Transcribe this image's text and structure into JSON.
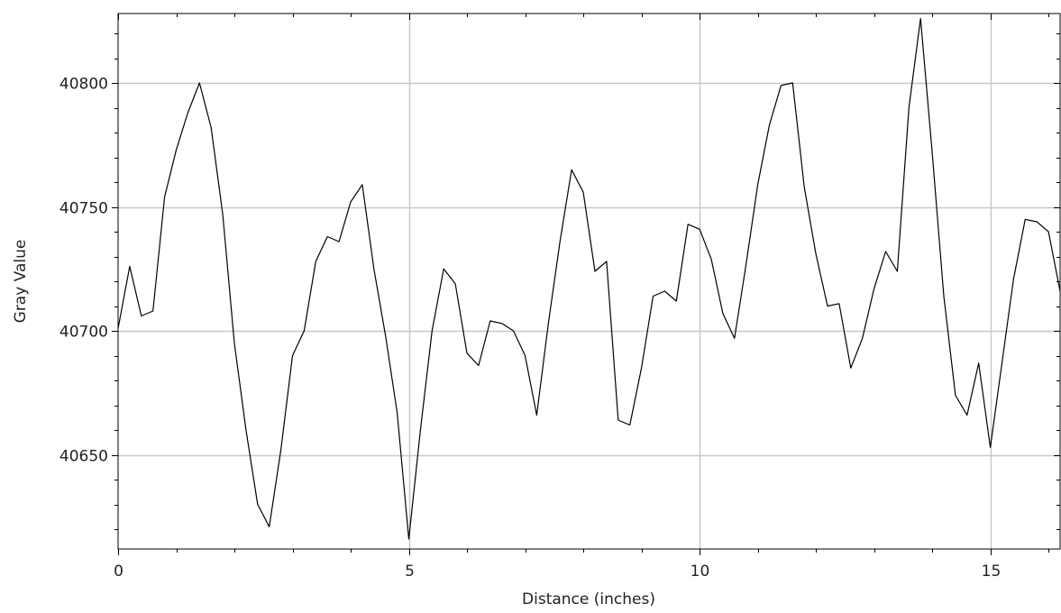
{
  "chart_data": {
    "type": "line",
    "title": "",
    "xlabel": "Distance (inches)",
    "ylabel": "Gray Value",
    "xlim": [
      0,
      16.2
    ],
    "ylim": [
      40612,
      40828
    ],
    "x_ticks": [
      0,
      5,
      10,
      15
    ],
    "x_tick_labels": [
      "0",
      "5",
      "10",
      "15"
    ],
    "y_ticks": [
      40650,
      40700,
      40750,
      40800
    ],
    "y_tick_labels": [
      "40650",
      "40700",
      "40750",
      "40800"
    ],
    "grid": true,
    "legend": "none",
    "colors": {
      "line": "#000000",
      "grid": "#c8c8c8",
      "frame": "#000000",
      "background": "#ffffff"
    },
    "series": [
      {
        "x": [
          0,
          0.2,
          0.4,
          0.6,
          0.8,
          1.0,
          1.2,
          1.4,
          1.6,
          1.8,
          2.0,
          2.2,
          2.4,
          2.6,
          2.8,
          3.0,
          3.2,
          3.4,
          3.6,
          3.8,
          4.0,
          4.2,
          4.4,
          4.6,
          4.8,
          5.0,
          5.2,
          5.4,
          5.6,
          5.8,
          6.0,
          6.2,
          6.4,
          6.6,
          6.8,
          7.0,
          7.2,
          7.4,
          7.6,
          7.8,
          8.0,
          8.2,
          8.4,
          8.6,
          8.8,
          9.0,
          9.2,
          9.4,
          9.6,
          9.8,
          10.0,
          10.2,
          10.4,
          10.6,
          10.8,
          11.0,
          11.2,
          11.4,
          11.6,
          11.8,
          12.0,
          12.2,
          12.4,
          12.6,
          12.8,
          13.0,
          13.2,
          13.4,
          13.6,
          13.8,
          14.0,
          14.2,
          14.4,
          14.6,
          14.8,
          15.0,
          15.2,
          15.4,
          15.6,
          15.8,
          16.0,
          16.2
        ],
        "y": [
          40701,
          40726,
          40706,
          40708,
          40754,
          40773,
          40788,
          40800,
          40782,
          40747,
          40695,
          40660,
          40630,
          40621,
          40652,
          40690,
          40700,
          40728,
          40738,
          40736,
          40752,
          40759,
          40725,
          40698,
          40667,
          40616,
          40660,
          40700,
          40725,
          40719,
          40691,
          40686,
          40704,
          40703,
          40700,
          40690,
          40666,
          40703,
          40736,
          40765,
          40756,
          40724,
          40728,
          40664,
          40662,
          40685,
          40714,
          40716,
          40712,
          40743,
          40741,
          40729,
          40707,
          40697,
          40727,
          40759,
          40783,
          40799,
          40800,
          40758,
          40731,
          40710,
          40711,
          40685,
          40697,
          40717,
          40732,
          40724,
          40790,
          40826,
          40772,
          40714,
          40674,
          40666,
          40687,
          40653,
          40687,
          40721,
          40745,
          40744,
          40740,
          40716
        ]
      }
    ]
  }
}
